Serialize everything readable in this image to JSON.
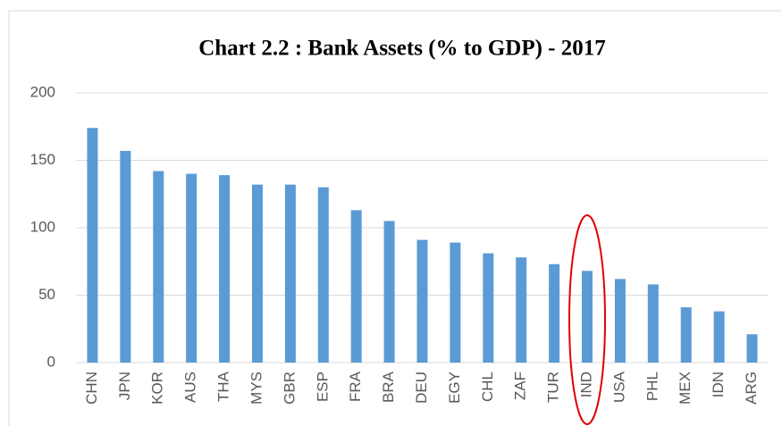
{
  "chart_data": {
    "type": "bar",
    "title": "Chart 2.2 : Bank Assets (% to GDP) - 2017",
    "categories": [
      "CHN",
      "JPN",
      "KOR",
      "AUS",
      "THA",
      "MYS",
      "GBR",
      "ESP",
      "FRA",
      "BRA",
      "DEU",
      "EGY",
      "CHL",
      "ZAF",
      "TUR",
      "IND",
      "USA",
      "PHL",
      "MEX",
      "IDN",
      "ARG"
    ],
    "values": [
      174,
      157,
      142,
      140,
      139,
      132,
      132,
      130,
      113,
      105,
      91,
      89,
      81,
      78,
      73,
      68,
      62,
      58,
      41,
      38,
      21
    ],
    "color": "#5b9bd5",
    "ylim": [
      0,
      200
    ],
    "yticks": [
      0,
      50,
      100,
      150,
      200
    ],
    "grid": true
  }
}
